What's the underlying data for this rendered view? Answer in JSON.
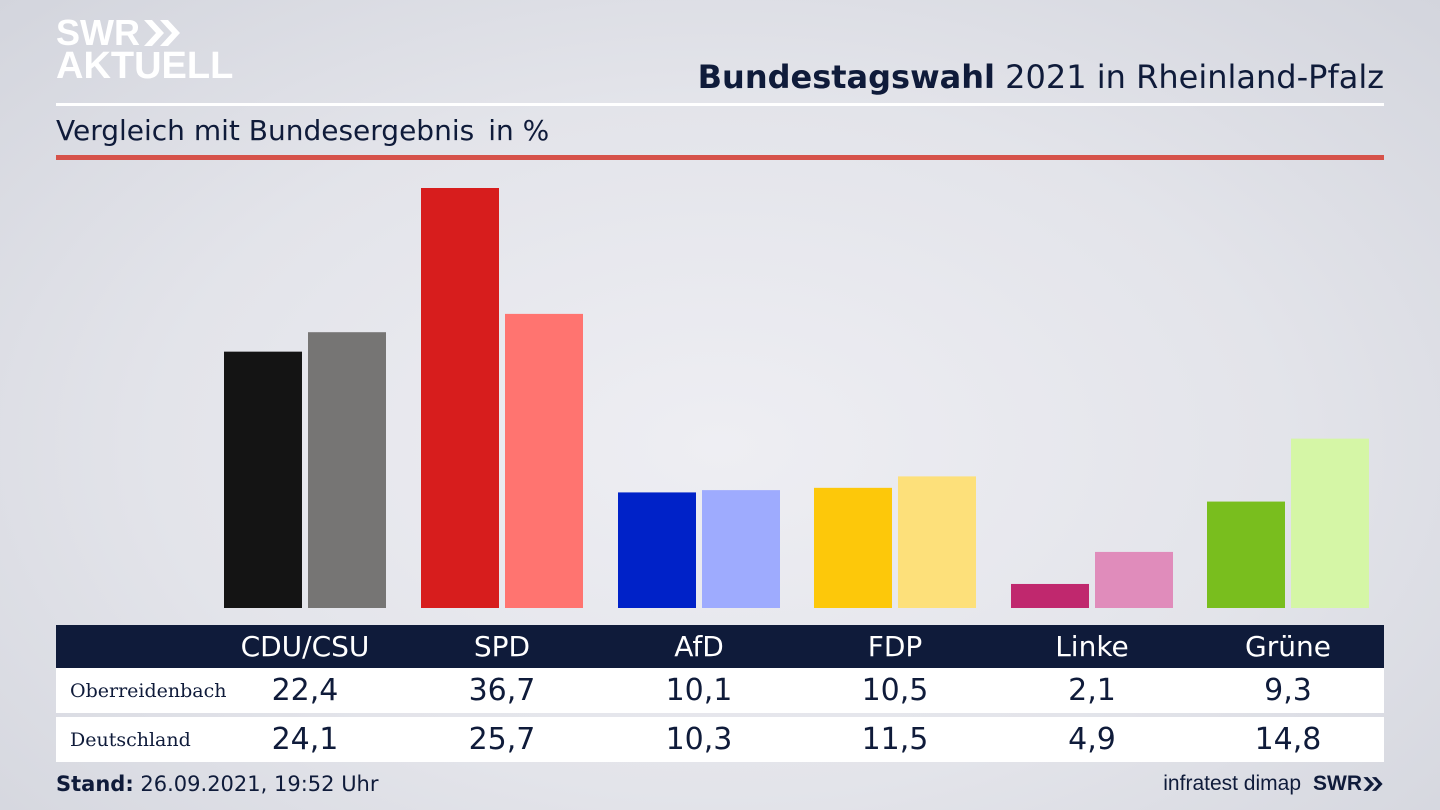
{
  "branding": {
    "logo_line1": "SWR",
    "logo_line2": "AKTUELL",
    "footer_logo": "SWR"
  },
  "header": {
    "title_bold": "Bundestagswahl",
    "title_rest": "2021 in Rheinland-Pfalz",
    "subtitle": "Vergleich mit Bundesergebnis",
    "unit": "in %"
  },
  "colors": {
    "navy": "#0f1b3a",
    "red_rule": "#d6524a"
  },
  "chart_data": {
    "type": "bar",
    "title": "Bundestagswahl 2021 in Rheinland-Pfalz",
    "subtitle": "Vergleich mit Bundesergebnis",
    "ylabel": "in %",
    "categories": [
      "CDU/CSU",
      "SPD",
      "AfD",
      "FDP",
      "Linke",
      "Grüne"
    ],
    "series": [
      {
        "name": "Oberreidenbach",
        "values": [
          22.4,
          36.7,
          10.1,
          10.5,
          2.1,
          9.3
        ],
        "colors": [
          "#141414",
          "#d71d1d",
          "#0022c8",
          "#fdc80a",
          "#c0286e",
          "#79be1e"
        ]
      },
      {
        "name": "Deutschland",
        "values": [
          24.1,
          25.7,
          10.3,
          11.5,
          4.9,
          14.8
        ],
        "colors": [
          "#767574",
          "#ff7470",
          "#9eabfe",
          "#fde07a",
          "#e08cbb",
          "#d5f6a6"
        ]
      }
    ],
    "ylim": [
      0,
      36.7
    ],
    "grid": false,
    "legend": "table-below"
  },
  "table": {
    "headers": [
      "CDU/CSU",
      "SPD",
      "AfD",
      "FDP",
      "Linke",
      "Grüne"
    ],
    "rows": [
      {
        "label": "Oberreidenbach",
        "values": [
          "22,4",
          "36,7",
          "10,1",
          "10,5",
          "2,1",
          "9,3"
        ]
      },
      {
        "label": "Deutschland",
        "values": [
          "24,1",
          "25,7",
          "10,3",
          "11,5",
          "4,9",
          "14,8"
        ]
      }
    ]
  },
  "footer": {
    "stand_label": "Stand:",
    "stand_value": "26.09.2021, 19:52 Uhr",
    "source": "infratest dimap"
  }
}
